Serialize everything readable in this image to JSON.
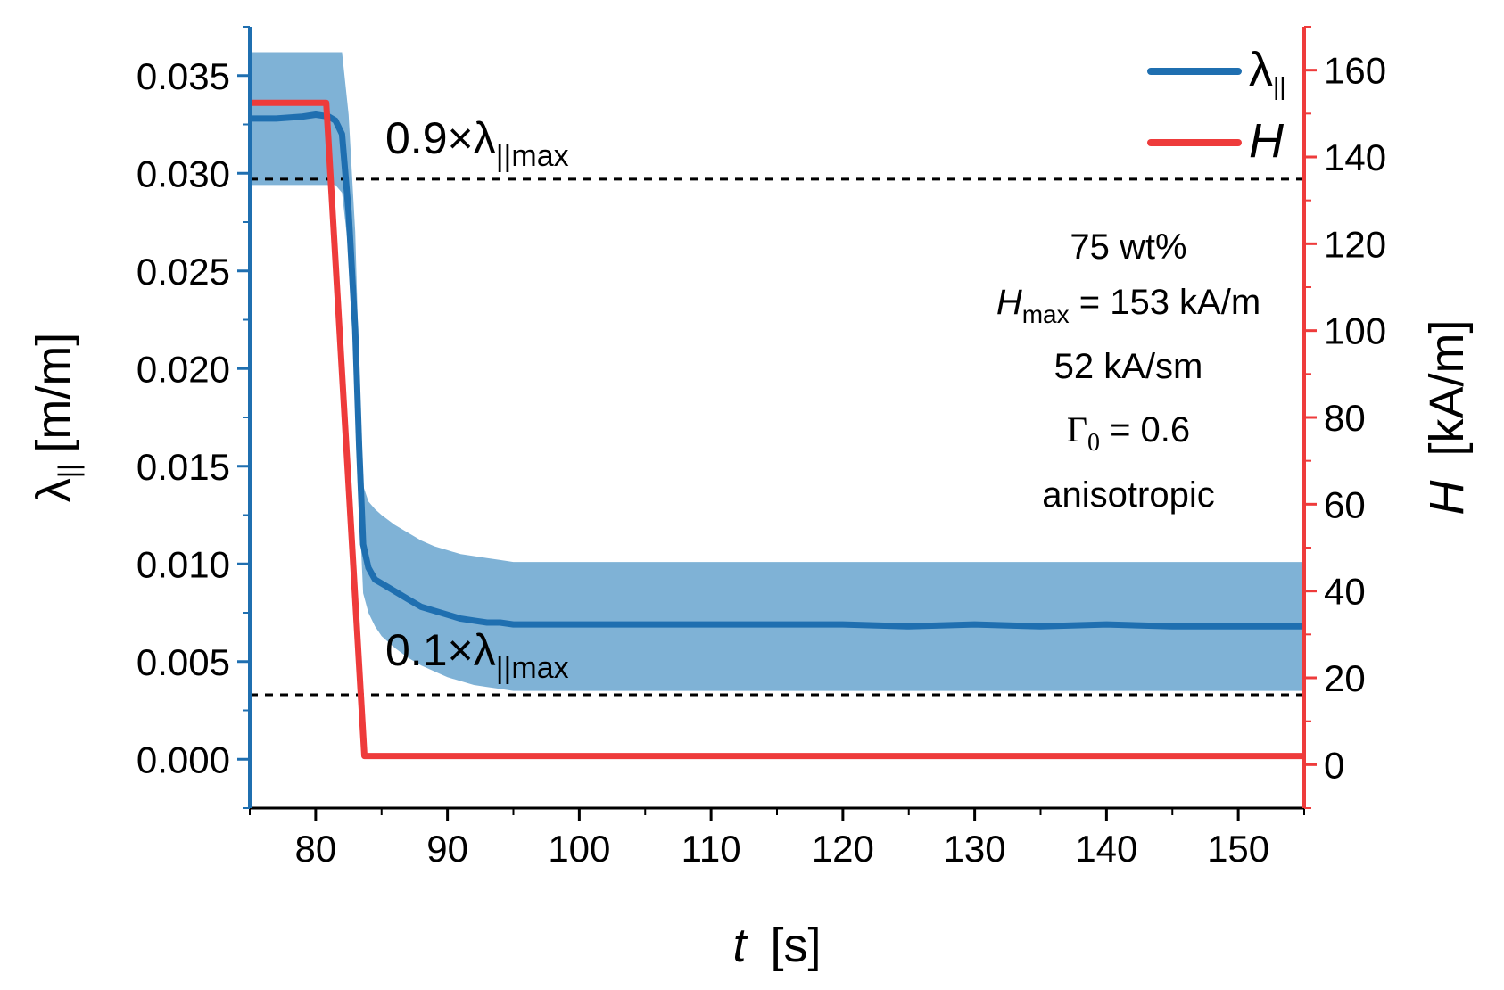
{
  "chart_data": {
    "type": "line",
    "title": "",
    "xlabel": {
      "var": "t",
      "unit": "[s]"
    },
    "ylabel_left": {
      "var": "λ",
      "sub": "||",
      "unit": "[m/m]"
    },
    "ylabel_right": {
      "var": "H",
      "unit": "[kA/m]"
    },
    "xlim": [
      75,
      155
    ],
    "ylim_left": [
      -0.0025,
      0.0375
    ],
    "ylim_right": [
      -10,
      170
    ],
    "x_ticks": [
      80,
      90,
      100,
      110,
      120,
      130,
      140,
      150
    ],
    "x_tick_labels": [
      "80",
      "90",
      "100",
      "110",
      "120",
      "130",
      "140",
      "150"
    ],
    "y_left_ticks": [
      0,
      0.005,
      0.01,
      0.015,
      0.02,
      0.025,
      0.03,
      0.035
    ],
    "y_left_tick_labels": [
      "0.000",
      "0.005",
      "0.010",
      "0.015",
      "0.020",
      "0.025",
      "0.030",
      "0.035"
    ],
    "y_right_ticks": [
      0,
      20,
      40,
      60,
      80,
      100,
      120,
      140,
      160
    ],
    "y_right_tick_labels": [
      "0",
      "20",
      "40",
      "60",
      "80",
      "100",
      "120",
      "140",
      "160"
    ],
    "legend": {
      "position": "top-right",
      "entries": [
        {
          "name": "λ",
          "sub": "||",
          "color": "#1f6fb0"
        },
        {
          "name": "H",
          "color": "#ee3b3b"
        }
      ]
    },
    "series": [
      {
        "name": "λ||",
        "axis": "left",
        "color": "#1f6fb0",
        "x": [
          75,
          77,
          79,
          80,
          81,
          81.5,
          82,
          82.5,
          83,
          83.3,
          83.6,
          84,
          84.5,
          85,
          86,
          87,
          88,
          89,
          90,
          91,
          92,
          93,
          94,
          95,
          96,
          98,
          100,
          105,
          110,
          120,
          125,
          130,
          135,
          140,
          145,
          150,
          155
        ],
        "y": [
          0.0328,
          0.0328,
          0.0329,
          0.033,
          0.0329,
          0.0327,
          0.032,
          0.028,
          0.022,
          0.016,
          0.011,
          0.0098,
          0.0092,
          0.009,
          0.0086,
          0.0082,
          0.0078,
          0.0076,
          0.0074,
          0.0072,
          0.0071,
          0.007,
          0.007,
          0.0069,
          0.0069,
          0.0069,
          0.0069,
          0.0069,
          0.0069,
          0.0069,
          0.0068,
          0.0069,
          0.0068,
          0.0069,
          0.0068,
          0.0068,
          0.0068
        ],
        "band_upper": [
          0.0362,
          0.0362,
          0.0362,
          0.0362,
          0.0362,
          0.0362,
          0.0362,
          0.033,
          0.027,
          0.02,
          0.014,
          0.0132,
          0.0128,
          0.0125,
          0.012,
          0.0116,
          0.0112,
          0.0109,
          0.0107,
          0.0105,
          0.0104,
          0.0103,
          0.0102,
          0.0101,
          0.0101,
          0.0101,
          0.0101,
          0.0101,
          0.0101,
          0.0101,
          0.0101,
          0.0101,
          0.0101,
          0.0101,
          0.0101,
          0.0101,
          0.0101
        ],
        "band_lower": [
          0.0294,
          0.0294,
          0.0294,
          0.0294,
          0.0294,
          0.0294,
          0.029,
          0.026,
          0.019,
          0.013,
          0.0085,
          0.0075,
          0.0068,
          0.0063,
          0.0057,
          0.0052,
          0.0048,
          0.0045,
          0.0042,
          0.004,
          0.0038,
          0.0037,
          0.0036,
          0.0035,
          0.0035,
          0.0035,
          0.0035,
          0.0035,
          0.0035,
          0.0035,
          0.0035,
          0.0035,
          0.0035,
          0.0035,
          0.0035,
          0.0035,
          0.0035
        ]
      },
      {
        "name": "H",
        "axis": "right",
        "color": "#ee3b3b",
        "x": [
          75,
          80.8,
          83.7,
          155
        ],
        "y": [
          152.5,
          152.5,
          2,
          2
        ]
      }
    ],
    "reference_lines": [
      {
        "label": "0.9×λ",
        "sub": "||max",
        "y": 0.0297
      },
      {
        "label": "0.1×λ",
        "sub": "||max",
        "y": 0.0033
      }
    ],
    "annotations": [
      {
        "text": "75 wt%"
      },
      {
        "var": "H",
        "sub": "max",
        "text": " = 153 kA/m"
      },
      {
        "text": "52 kA/sm"
      },
      {
        "var": "Γ",
        "sub": "0",
        "text": " = 0.6"
      },
      {
        "text": "anisotropic"
      }
    ]
  }
}
